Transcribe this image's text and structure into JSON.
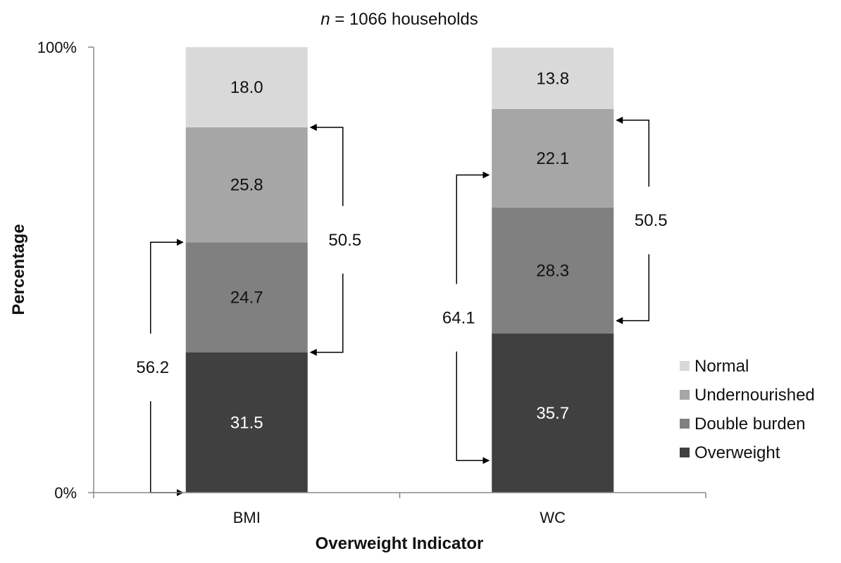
{
  "chart_data": {
    "type": "bar",
    "stacked": true,
    "title_italic": "n",
    "title_rest": " = 1066 households",
    "xlabel": "Overweight Indicator",
    "ylabel": "Percentage",
    "ylim": [
      0,
      100
    ],
    "y_ticks": [
      {
        "value": 0,
        "label": "0%"
      },
      {
        "value": 100,
        "label": "100%"
      }
    ],
    "categories": [
      "BMI",
      "WC"
    ],
    "series": [
      {
        "name": "Overweight",
        "color": "#404040",
        "text_color": "#ffffff",
        "values": [
          31.5,
          35.7
        ],
        "labels": [
          "31.5",
          "35.7"
        ]
      },
      {
        "name": "Double burden",
        "color": "#808080",
        "text_color": "#111111",
        "values": [
          24.7,
          28.3
        ],
        "labels": [
          "24.7",
          "28.3"
        ]
      },
      {
        "name": "Undernourished",
        "color": "#a6a6a6",
        "text_color": "#111111",
        "values": [
          25.8,
          22.1
        ],
        "labels": [
          "25.8",
          "22.1"
        ]
      },
      {
        "name": "Normal",
        "color": "#d9d9d9",
        "text_color": "#111111",
        "values": [
          18.0,
          13.8
        ],
        "labels": [
          "18.0",
          "13.8"
        ]
      }
    ],
    "legend_order": [
      "Normal",
      "Undernourished",
      "Double burden",
      "Overweight"
    ],
    "legend_position": "right",
    "grid": false,
    "brackets": [
      {
        "category": "BMI",
        "side": "left",
        "from": 0,
        "to": 56.2,
        "label": "56.2"
      },
      {
        "category": "BMI",
        "side": "right",
        "from": 31.5,
        "to": 82.0,
        "label": "50.5"
      },
      {
        "category": "WC",
        "side": "left",
        "from": 7.2,
        "to": 71.3,
        "label": "64.1"
      },
      {
        "category": "WC",
        "side": "right",
        "from": 38.6,
        "to": 83.6,
        "label": "50.5"
      }
    ]
  }
}
